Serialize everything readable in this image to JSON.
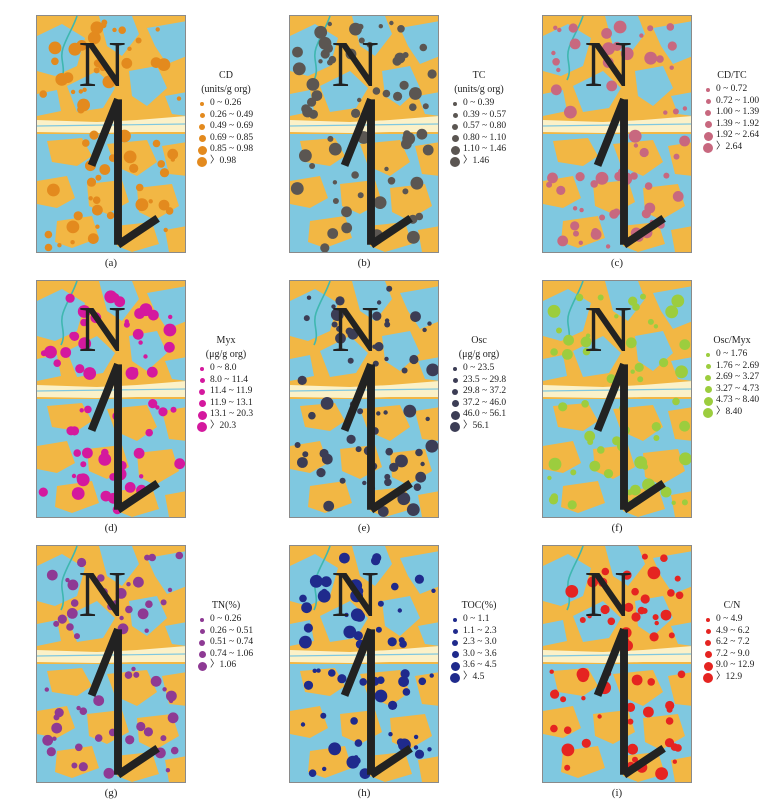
{
  "colors": {
    "land": "#f2b744",
    "water": "#7fc8e0",
    "river_band": "#fbf1c8",
    "stream": "#3fb7b0"
  },
  "north_label": "N",
  "panels": [
    {
      "caption": "(a)",
      "title": "CD",
      "unit": "units/g org",
      "color": "#e38a1e",
      "classes": [
        "0 ~ 0.26",
        "0.26 ~ 0.49",
        "0.49 ~ 0.69",
        "0.69 ~ 0.85",
        "0.85 ~ 0.98",
        "〉0.98"
      ]
    },
    {
      "caption": "(b)",
      "title": "TC",
      "unit": "units/g org",
      "color": "#5b5652",
      "classes": [
        "0 ~ 0.39",
        "0.39 ~ 0.57",
        "0.57 ~ 0.80",
        "0.80 ~ 1.10",
        "1.10 ~ 1.46",
        "〉1.46"
      ]
    },
    {
      "caption": "(c)",
      "title": "CD/TC",
      "unit": "",
      "color": "#c8687f",
      "classes": [
        "0 ~ 0.72",
        "0.72 ~ 1.00",
        "1.00 ~ 1.39",
        "1.39 ~ 1.92",
        "1.92 ~ 2.64",
        "〉2.64"
      ]
    },
    {
      "caption": "(d)",
      "title": "Myx",
      "unit": "μg/g org",
      "color": "#d4199e",
      "classes": [
        "0 ~ 8.0",
        "8.0 ~ 11.4",
        "11.4 ~ 11.9",
        "11.9 ~ 13.1",
        "13.1 ~ 20.3",
        "〉20.3"
      ]
    },
    {
      "caption": "(e)",
      "title": "Osc",
      "unit": "μg/g org",
      "color": "#3c3d55",
      "classes": [
        "0 ~ 23.5",
        "23.5 ~ 29.8",
        "29.8 ~ 37.2",
        "37.2 ~ 46.0",
        "46.0 ~ 56.1",
        "〉56.1"
      ]
    },
    {
      "caption": "(f)",
      "title": "Osc/Myx",
      "unit": "",
      "color": "#9ccd3e",
      "classes": [
        "0 ~ 1.76",
        "1.76 ~ 2.69",
        "2.69 ~ 3.27",
        "3.27 ~ 4.73",
        "4.73 ~ 8.40",
        "〉8.40"
      ]
    },
    {
      "caption": "(g)",
      "title": "TN(%)",
      "unit": "",
      "color": "#8e3a94",
      "classes": [
        "0 ~ 0.26",
        "0.26 ~ 0.51",
        "0.51 ~ 0.74",
        "0.74 ~ 1.06",
        "〉1.06"
      ]
    },
    {
      "caption": "(h)",
      "title": "TOC(%)",
      "unit": "",
      "color": "#1f2a8c",
      "classes": [
        "0 ~ 1.1",
        "1.1 ~ 2.3",
        "2.3 ~ 3.0",
        "3.0 ~ 3.6",
        "3.6 ~ 4.5",
        "〉4.5"
      ]
    },
    {
      "caption": "(i)",
      "title": "C/N",
      "unit": "",
      "color": "#e52421",
      "classes": [
        "0 ~ 4.9",
        "4.9 ~ 6.2",
        "6.2 ~ 7.2",
        "7.2 ~ 9.0",
        "9.0 ~ 12.9",
        "〉12.9"
      ]
    }
  ]
}
